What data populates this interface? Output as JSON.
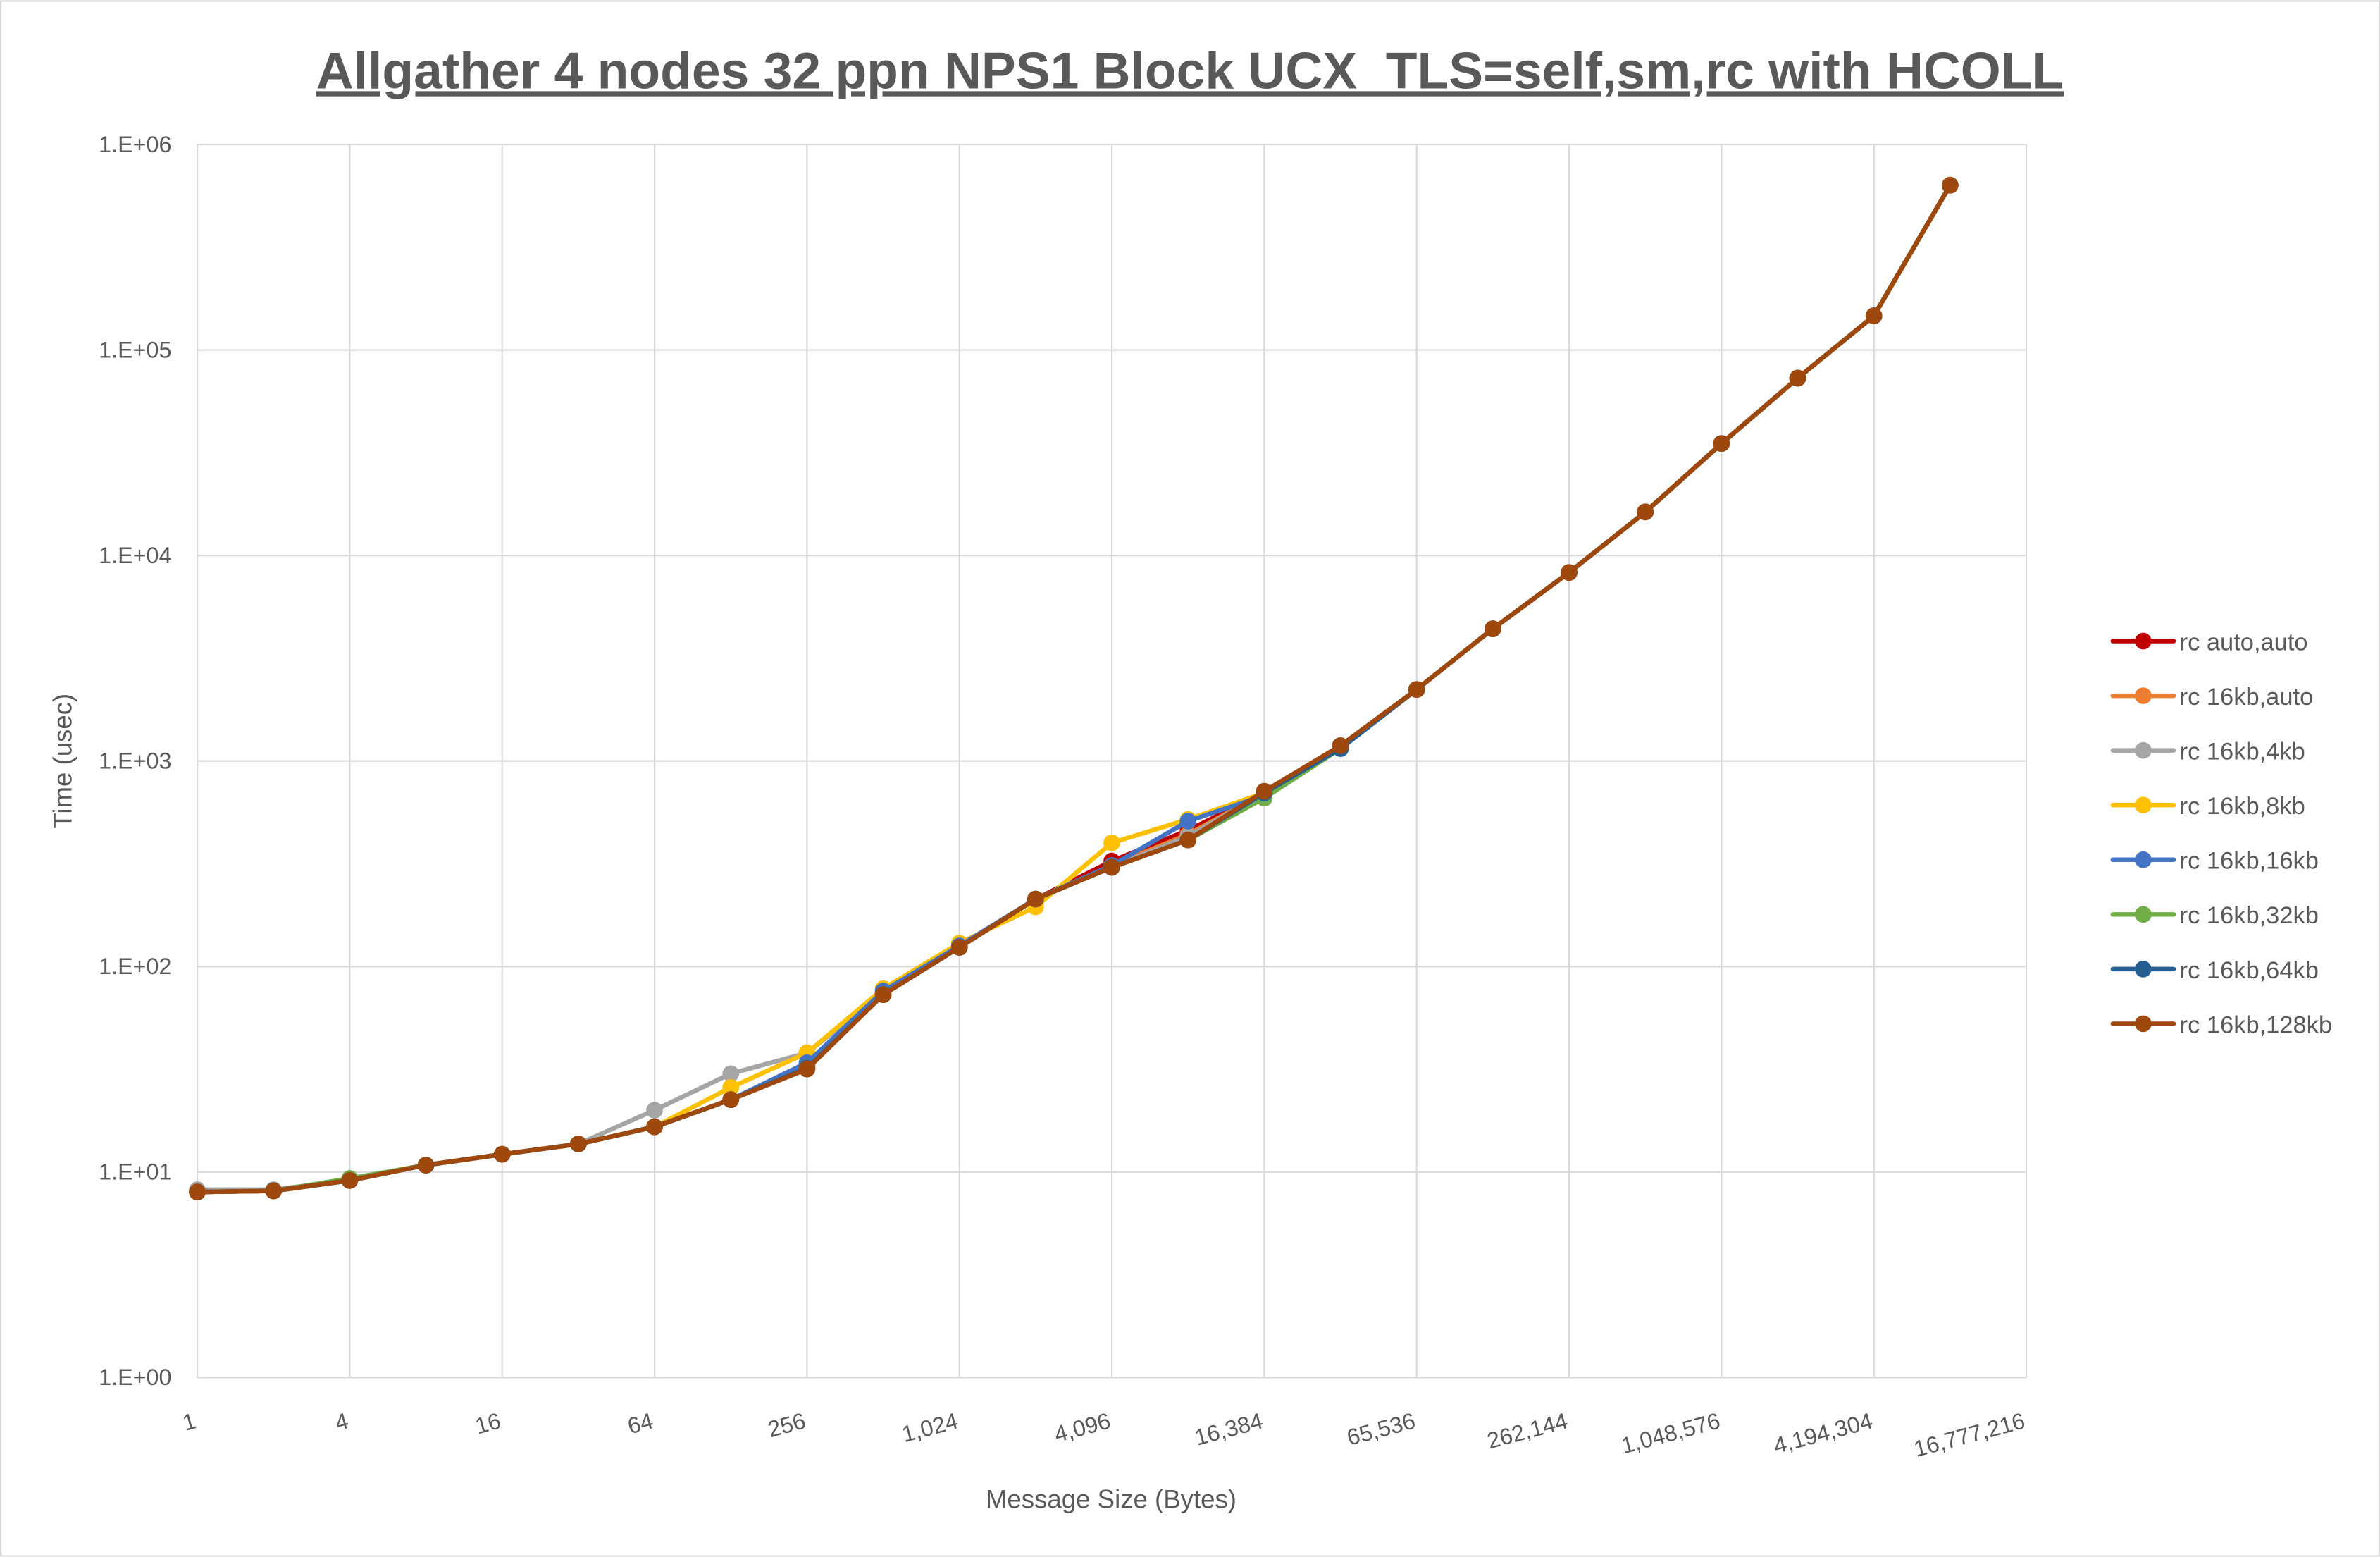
{
  "chart_data": {
    "type": "line",
    "title": "Allgather 4 nodes 32 ppn NPS1 Block UCX_TLS=self,sm,rc with HCOLL",
    "xlabel": "Message Size (Bytes)",
    "ylabel": "Time (usec)",
    "x_scale": "log2",
    "y_scale": "log10",
    "xlim": [
      1,
      16777216
    ],
    "ylim": [
      1,
      1000000
    ],
    "grid": true,
    "legend_position": "right",
    "x_tick_labels": [
      "1",
      "4",
      "16",
      "64",
      "256",
      "1,024",
      "4,096",
      "16,384",
      "65,536",
      "262,144",
      "1,048,576",
      "4,194,304",
      "16,777,216"
    ],
    "x_tick_values": [
      1,
      4,
      16,
      64,
      256,
      1024,
      4096,
      16384,
      65536,
      262144,
      1048576,
      4194304,
      16777216
    ],
    "y_tick_labels": [
      "1.E+00",
      "1.E+01",
      "1.E+02",
      "1.E+03",
      "1.E+04",
      "1.E+05",
      "1.E+06"
    ],
    "y_tick_values": [
      1,
      10,
      100,
      1000,
      10000,
      100000,
      1000000
    ],
    "x": [
      1,
      2,
      4,
      8,
      16,
      32,
      64,
      128,
      256,
      512,
      1024,
      2048,
      4096,
      8192,
      16384,
      32768,
      65536,
      131072,
      262144,
      524288,
      1048576,
      2097152,
      4194304,
      8388608
    ],
    "series": [
      {
        "name": "rc auto,auto",
        "color": "#C00000",
        "values": [
          8.0,
          8.1,
          9.1,
          10.8,
          12.2,
          13.7,
          16.6,
          22.5,
          33,
          73,
          124,
          213,
          326,
          460,
          700,
          1188,
          2230,
          4400,
          8270,
          16300,
          35100,
          73000,
          146700,
          634000
        ]
      },
      {
        "name": "rc 16kb,auto",
        "color": "#ED7D31",
        "values": [
          8.0,
          8.1,
          9.1,
          10.8,
          12.2,
          13.7,
          16.6,
          22.5,
          32,
          73,
          124,
          213,
          310,
          440,
          700,
          1188,
          2230,
          4400,
          8270,
          16300,
          35100,
          73000,
          146700,
          634000
        ]
      },
      {
        "name": "rc 16kb,4kb",
        "color": "#A5A5A5",
        "values": [
          8.2,
          8.2,
          9.1,
          10.8,
          12.2,
          13.7,
          20.0,
          30.1,
          38,
          75,
          126,
          213,
          304,
          430,
          700,
          1188,
          2230,
          4400,
          8270,
          16300,
          35100,
          73000,
          146700,
          634000
        ]
      },
      {
        "name": "rc 16kb,8kb",
        "color": "#FFC000",
        "values": [
          8.0,
          8.1,
          9.1,
          10.8,
          12.2,
          13.7,
          16.6,
          25.8,
          38,
          78,
          130,
          195,
          400,
          520,
          700,
          1188,
          2230,
          4400,
          8270,
          16300,
          35100,
          73000,
          146700,
          634000
        ]
      },
      {
        "name": "rc 16kb,16kb",
        "color": "#4472C4",
        "values": [
          8.0,
          8.1,
          9.1,
          10.8,
          12.2,
          13.7,
          16.6,
          22.5,
          34,
          76,
          126,
          213,
          310,
          510,
          680,
          1188,
          2230,
          4400,
          8270,
          16300,
          35100,
          73000,
          146700,
          634000
        ]
      },
      {
        "name": "rc 16kb,32kb",
        "color": "#70AD47",
        "values": [
          8.0,
          8.1,
          9.3,
          10.8,
          12.2,
          13.7,
          16.6,
          22.5,
          32,
          73,
          124,
          213,
          304,
          413,
          660,
          1150,
          2230,
          4400,
          8270,
          16300,
          35100,
          73000,
          146700,
          634000
        ]
      },
      {
        "name": "rc 16kb,64kb",
        "color": "#255E91",
        "values": [
          8.0,
          8.1,
          9.1,
          10.8,
          12.2,
          13.7,
          16.6,
          22.5,
          32,
          73,
          124,
          213,
          304,
          413,
          700,
          1150,
          2230,
          4400,
          8270,
          16300,
          35100,
          73000,
          146700,
          634000
        ]
      },
      {
        "name": "rc 16kb,128kb",
        "color": "#9E480E",
        "values": [
          8.0,
          8.1,
          9.1,
          10.8,
          12.2,
          13.7,
          16.6,
          22.5,
          31.7,
          73,
          124,
          213,
          304,
          413,
          713,
          1188,
          2230,
          4400,
          8270,
          16300,
          35100,
          73000,
          146700,
          634000
        ]
      }
    ]
  }
}
